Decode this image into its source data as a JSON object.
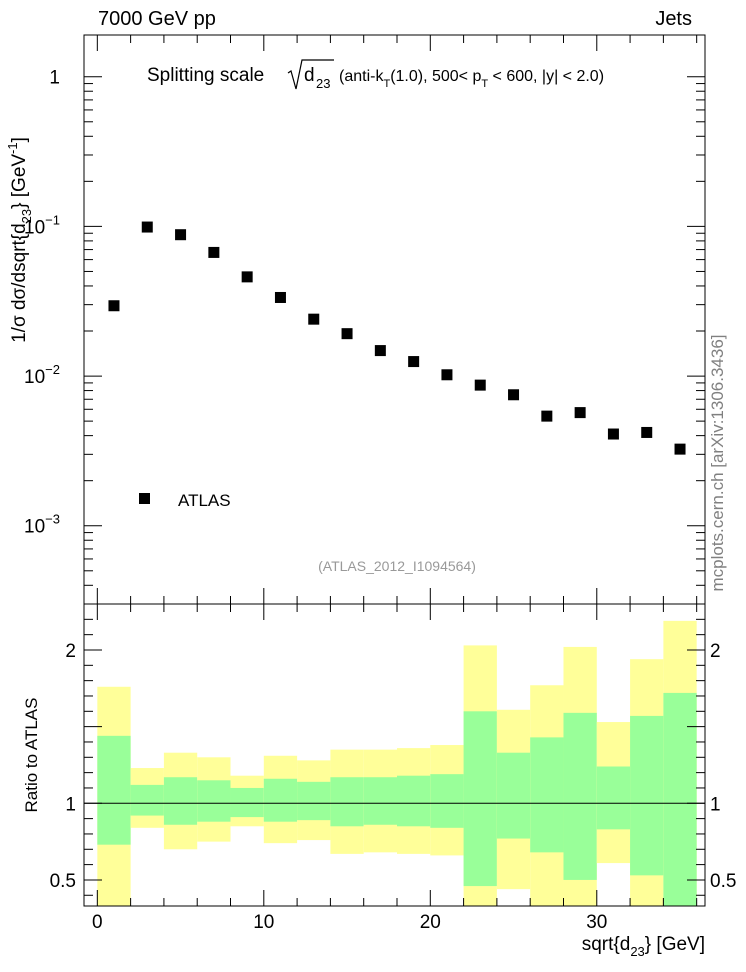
{
  "header": {
    "left": "7000 GeV pp",
    "right": "Jets"
  },
  "side_label": "mcplots.cern.ch [arXiv:1306.3436]",
  "chart_data": [
    {
      "type": "scatter",
      "title": "Splitting scale",
      "title_symbol": "d",
      "title_symbol_sub": "23",
      "title_detail_parts": [
        "(anti-k",
        "T",
        "(1.0), 500< p",
        "T",
        " < 600, |y| < 2.0)"
      ],
      "ylabel_parts": [
        "1/σ dσ/dsqrt{d",
        "23",
        "} [GeV",
        "-1",
        "]"
      ],
      "yscale": "log",
      "ylim": [
        0.0003,
        1.9
      ],
      "xlim": [
        -0.8,
        36.5
      ],
      "y_ticks": [
        {
          "value": 1,
          "base": "1",
          "exp": ""
        },
        {
          "value": 0.1,
          "base": "10",
          "exp": "−1"
        },
        {
          "value": 0.01,
          "base": "10",
          "exp": "−2"
        },
        {
          "value": 0.001,
          "base": "10",
          "exp": "−3"
        }
      ],
      "legend": {
        "entries": [
          "ATLAS"
        ],
        "position": "bottom-left"
      },
      "annotation": "(ATLAS_2012_I1094564)",
      "series": [
        {
          "name": "ATLAS",
          "x": [
            1,
            3,
            5,
            7,
            9,
            11,
            13,
            15,
            17,
            19,
            21,
            23,
            25,
            27,
            29,
            31,
            33,
            35
          ],
          "y": [
            0.0295,
            0.099,
            0.088,
            0.067,
            0.046,
            0.0335,
            0.024,
            0.0192,
            0.0148,
            0.0125,
            0.0102,
            0.0087,
            0.0075,
            0.0054,
            0.0057,
            0.0041,
            0.0042,
            0.00325
          ]
        }
      ]
    },
    {
      "type": "area",
      "ylabel": "Ratio to ATLAS",
      "xlabel_parts": [
        "sqrt{d",
        "23",
        "} [GeV]"
      ],
      "xlim": [
        -0.8,
        36.5
      ],
      "ylim": [
        0.33,
        2.3
      ],
      "x_ticks": [
        0,
        10,
        20,
        30
      ],
      "y_ticks": [
        0.5,
        1,
        2
      ],
      "reference_line": 1,
      "band_colors": {
        "inner": "#99ff99",
        "outer": "#ffff99"
      },
      "bins": [
        {
          "lo": 0,
          "hi": 2,
          "in_lo": 0.73,
          "in_hi": 1.44,
          "out_lo": 0.33,
          "out_hi": 1.76
        },
        {
          "lo": 2,
          "hi": 4,
          "in_lo": 0.92,
          "in_hi": 1.12,
          "out_lo": 0.84,
          "out_hi": 1.23
        },
        {
          "lo": 4,
          "hi": 6,
          "in_lo": 0.86,
          "in_hi": 1.17,
          "out_lo": 0.7,
          "out_hi": 1.33
        },
        {
          "lo": 6,
          "hi": 8,
          "in_lo": 0.88,
          "in_hi": 1.15,
          "out_lo": 0.75,
          "out_hi": 1.3
        },
        {
          "lo": 8,
          "hi": 10,
          "in_lo": 0.91,
          "in_hi": 1.1,
          "out_lo": 0.85,
          "out_hi": 1.18
        },
        {
          "lo": 10,
          "hi": 12,
          "in_lo": 0.88,
          "in_hi": 1.16,
          "out_lo": 0.74,
          "out_hi": 1.31
        },
        {
          "lo": 12,
          "hi": 14,
          "in_lo": 0.89,
          "in_hi": 1.14,
          "out_lo": 0.76,
          "out_hi": 1.28
        },
        {
          "lo": 14,
          "hi": 16,
          "in_lo": 0.85,
          "in_hi": 1.17,
          "out_lo": 0.67,
          "out_hi": 1.35
        },
        {
          "lo": 16,
          "hi": 18,
          "in_lo": 0.86,
          "in_hi": 1.17,
          "out_lo": 0.68,
          "out_hi": 1.35
        },
        {
          "lo": 18,
          "hi": 20,
          "in_lo": 0.85,
          "in_hi": 1.18,
          "out_lo": 0.67,
          "out_hi": 1.36
        },
        {
          "lo": 20,
          "hi": 22,
          "in_lo": 0.84,
          "in_hi": 1.19,
          "out_lo": 0.66,
          "out_hi": 1.38
        },
        {
          "lo": 22,
          "hi": 24,
          "in_lo": 0.46,
          "in_hi": 1.6,
          "out_lo": 0.33,
          "out_hi": 2.03
        },
        {
          "lo": 24,
          "hi": 26,
          "in_lo": 0.77,
          "in_hi": 1.33,
          "out_lo": 0.44,
          "out_hi": 1.61
        },
        {
          "lo": 26,
          "hi": 28,
          "in_lo": 0.68,
          "in_hi": 1.43,
          "out_lo": 0.33,
          "out_hi": 1.77
        },
        {
          "lo": 28,
          "hi": 30,
          "in_lo": 0.5,
          "in_hi": 1.59,
          "out_lo": 0.33,
          "out_hi": 2.02
        },
        {
          "lo": 30,
          "hi": 32,
          "in_lo": 0.83,
          "in_hi": 1.24,
          "out_lo": 0.61,
          "out_hi": 1.53
        },
        {
          "lo": 32,
          "hi": 34,
          "in_lo": 0.53,
          "in_hi": 1.57,
          "out_lo": 0.33,
          "out_hi": 1.94
        },
        {
          "lo": 34,
          "hi": 36,
          "in_lo": 0.33,
          "in_hi": 1.72,
          "out_lo": 0.33,
          "out_hi": 2.19
        }
      ]
    }
  ]
}
